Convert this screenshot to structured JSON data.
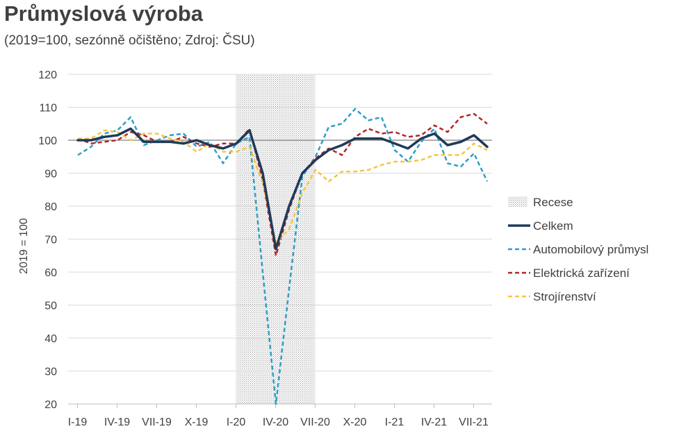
{
  "chart_data": {
    "type": "line",
    "title": "Průmyslová výroba",
    "subtitle": "(2019=100, sezónně očištěno; Zdroj: ČSU)",
    "ylabel": "2019 = 100",
    "ylim": [
      20,
      120
    ],
    "yticks": [
      20,
      30,
      40,
      50,
      60,
      70,
      80,
      90,
      100,
      110,
      120
    ],
    "x_tick_labels": [
      "I-19",
      "IV-19",
      "VII-19",
      "X-19",
      "I-20",
      "IV-20",
      "VII-20",
      "X-20",
      "I-21",
      "IV-21",
      "VII-21"
    ],
    "x": [
      "I-19",
      "II-19",
      "III-19",
      "IV-19",
      "V-19",
      "VI-19",
      "VII-19",
      "VIII-19",
      "IX-19",
      "X-19",
      "XI-19",
      "XII-19",
      "I-20",
      "II-20",
      "III-20",
      "IV-20",
      "V-20",
      "VI-20",
      "VII-20",
      "VIII-20",
      "IX-20",
      "X-20",
      "XI-20",
      "XII-20",
      "I-21",
      "II-21",
      "III-21",
      "IV-21",
      "V-21",
      "VI-21",
      "VII-21",
      "VIII-21"
    ],
    "reference_line": 100,
    "recession": {
      "label": "Recese",
      "from": "I-20",
      "to": "VII-20"
    },
    "legend_position": "right",
    "series": [
      {
        "name": "Celkem",
        "color": "#1f3a5a",
        "dashed": false,
        "width": 3.5,
        "values": [
          100,
          100,
          101,
          101.5,
          103.5,
          99.5,
          99.5,
          99.5,
          99,
          100,
          98.5,
          97.5,
          99,
          103,
          90,
          67,
          80,
          90,
          94,
          97,
          98.5,
          100.5,
          100.5,
          100.5,
          99,
          97.5,
          100.5,
          102,
          98.5,
          99.5,
          101.5,
          98
        ]
      },
      {
        "name": "Automobilový průmysl",
        "color": "#2e9ec4",
        "dashed": true,
        "width": 2.5,
        "values": [
          95.5,
          98,
          102,
          103,
          107,
          98.5,
          100,
          101.5,
          102,
          98,
          99.5,
          93,
          99,
          101,
          60,
          20,
          55,
          89,
          95,
          104,
          105,
          109.5,
          106,
          107,
          97,
          93.5,
          99.5,
          103.5,
          93,
          92,
          96,
          87.5
        ]
      },
      {
        "name": "Elektrická zařízení",
        "color": "#b3242a",
        "dashed": true,
        "width": 2.5,
        "values": [
          100.5,
          99,
          99.5,
          100,
          102.5,
          101.5,
          99.5,
          99.5,
          101,
          99,
          98,
          99,
          99,
          103.5,
          88,
          65,
          79,
          90,
          94.5,
          97.5,
          95.5,
          101,
          103.5,
          102,
          102.5,
          101,
          101.5,
          104.5,
          102.5,
          107,
          108,
          105
        ]
      },
      {
        "name": "Strojírenství",
        "color": "#f2c744",
        "dashed": true,
        "width": 2.5,
        "values": [
          100.5,
          100.5,
          103,
          102.5,
          100,
          102,
          102,
          100.5,
          99.5,
          96.5,
          99,
          96.5,
          96.5,
          98,
          87,
          69,
          73,
          84,
          91,
          87.5,
          90.5,
          90.5,
          91,
          92.5,
          93.5,
          93.5,
          94,
          95.5,
          95.5,
          95.5,
          99,
          97
        ]
      }
    ]
  }
}
